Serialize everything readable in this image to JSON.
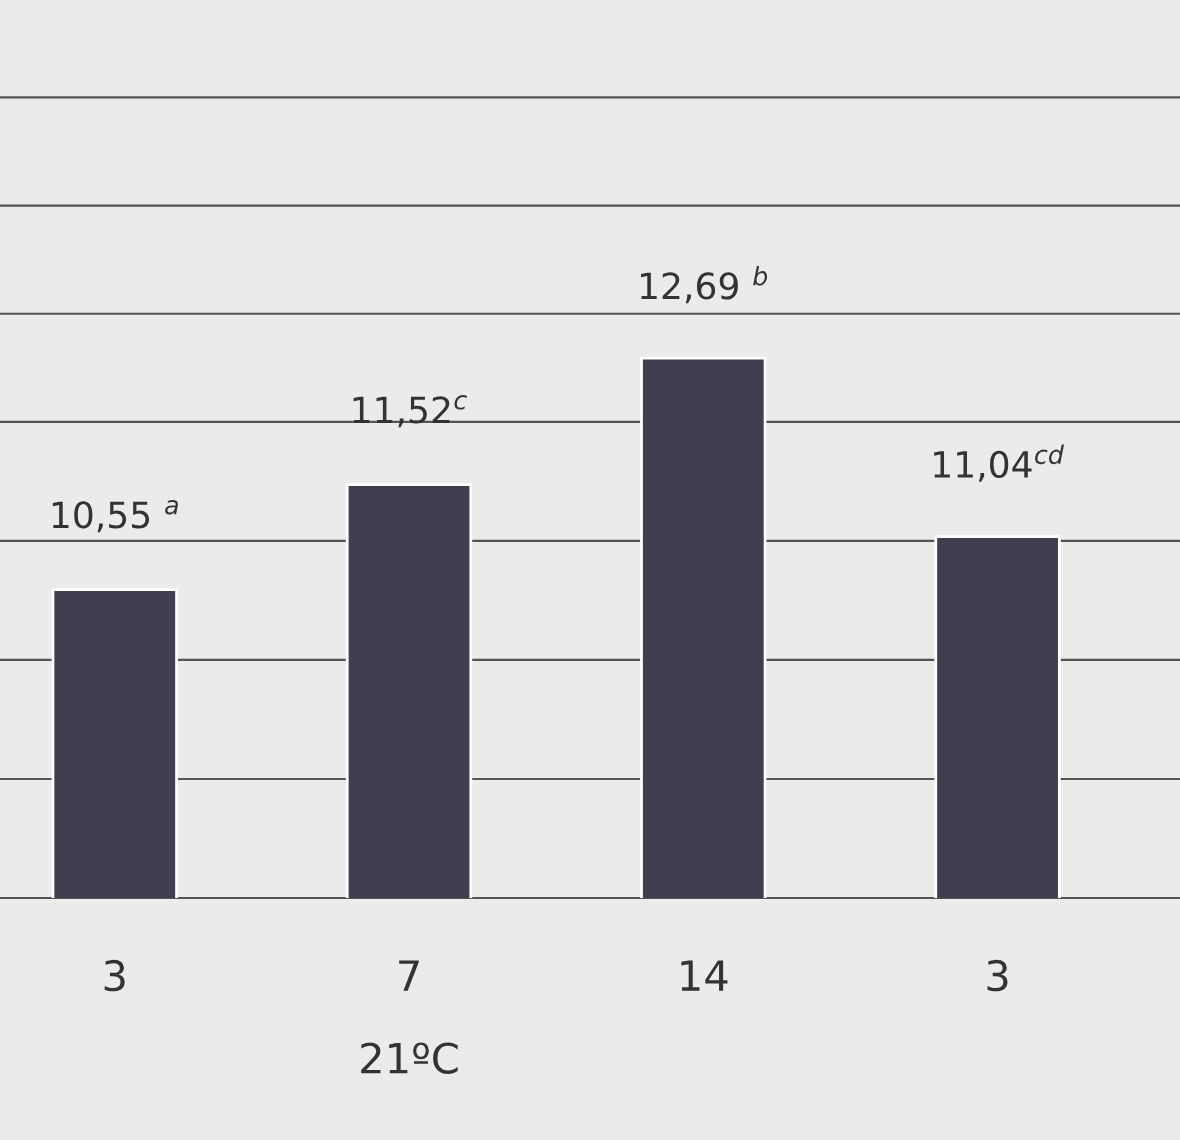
{
  "chart_data": {
    "type": "bar",
    "categories": [
      "3",
      "7",
      "14",
      "3"
    ],
    "values": [
      10.55,
      11.52,
      12.69,
      11.04
    ],
    "color": "#423e4f",
    "value_labels": [
      "10,55 $^{a}$",
      "11,52$^{c}$",
      "12,69 $^{b}$",
      "11,04$^{cd}$"
    ],
    "xlabel": "21ºC",
    "ylim": [
      7.7,
      16.0
    ],
    "yticks": [
      {
        "value": 8.8,
        "label": null
      },
      {
        "value": 9.9,
        "label": null
      },
      {
        "value": 11.0,
        "label": null
      },
      {
        "value": 12.1,
        "label": null
      },
      {
        "value": 13.1,
        "label": null
      },
      {
        "value": 14.1,
        "label": null
      },
      {
        "value": 15.1,
        "label": null
      }
    ],
    "grid": "y",
    "tick_labels": "x"
  }
}
